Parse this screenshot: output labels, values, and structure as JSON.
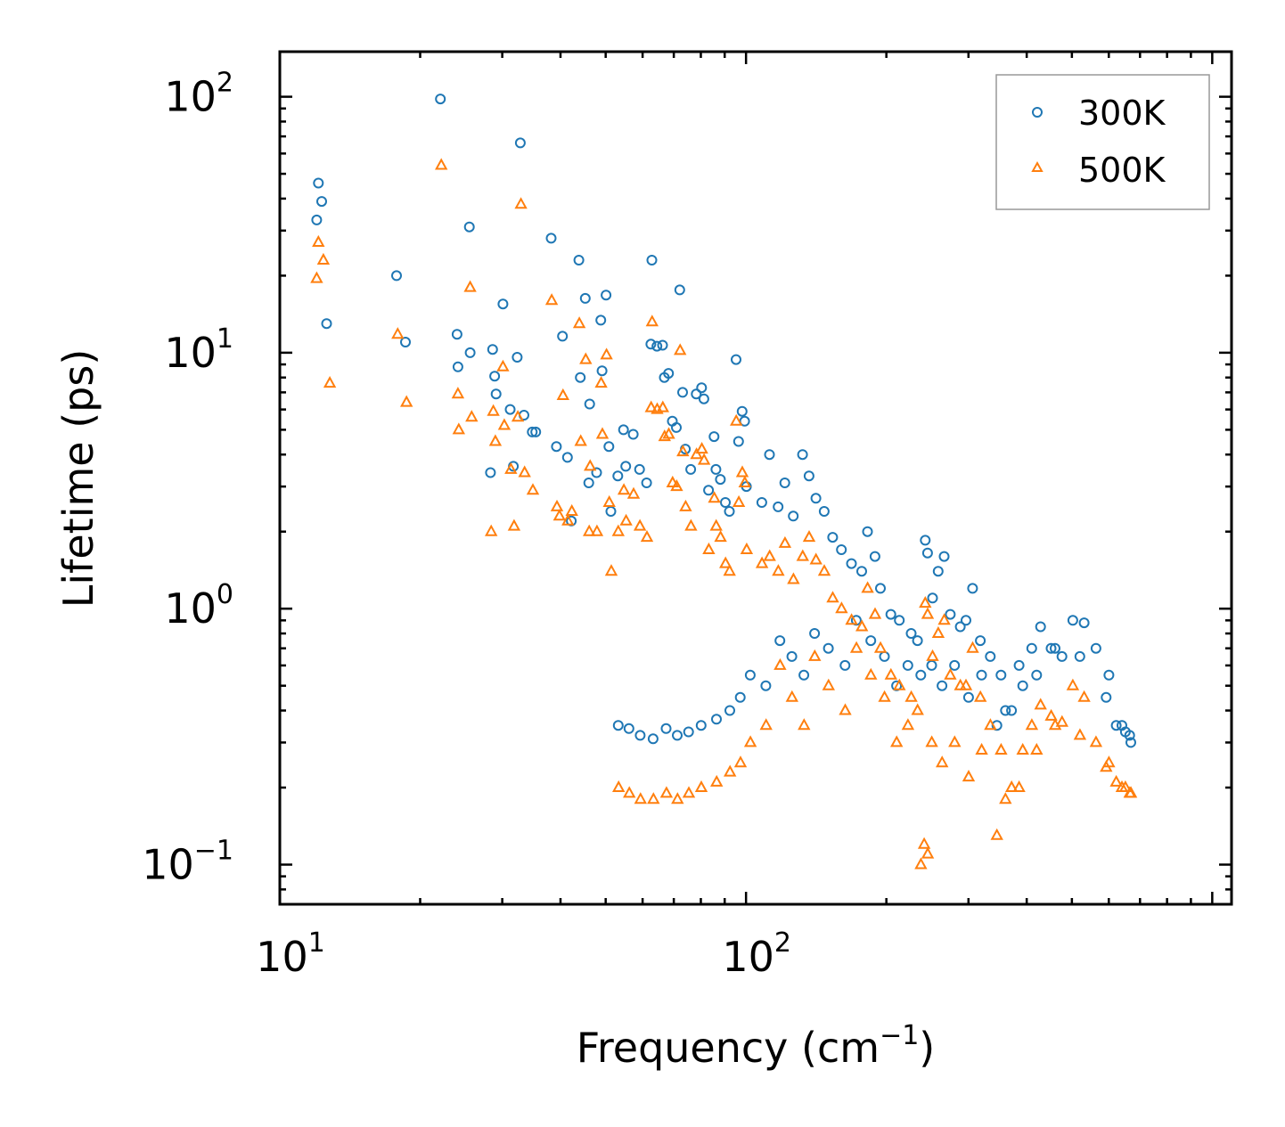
{
  "chart_data": {
    "type": "scatter",
    "xscale": "log",
    "yscale": "log",
    "xlim": [
      10,
      1100
    ],
    "ylim": [
      0.07,
      150
    ],
    "xlabel_text": "Frequency (cm",
    "xlabel_sup": "−1",
    "xlabel_close": ")",
    "ylabel": "Lifetime (ps)",
    "x_ticks": [
      {
        "value": 10,
        "base": "10",
        "exp": "1"
      },
      {
        "value": 100,
        "base": "10",
        "exp": "2"
      }
    ],
    "y_ticks": [
      {
        "value": 0.1,
        "base": "10",
        "exp": "−1"
      },
      {
        "value": 1,
        "base": "10",
        "exp": "0"
      },
      {
        "value": 10,
        "base": "10",
        "exp": "1"
      },
      {
        "value": 100,
        "base": "10",
        "exp": "2"
      }
    ],
    "legend_position": "top-right",
    "series": [
      {
        "name": "300K",
        "color": "#1f77b4",
        "marker": "circle",
        "points": [
          [
            12.1,
            46
          ],
          [
            12.3,
            39
          ],
          [
            12.0,
            33
          ],
          [
            12.6,
            13
          ],
          [
            17.8,
            20
          ],
          [
            18.6,
            11
          ],
          [
            22.1,
            98
          ],
          [
            24.0,
            11.8
          ],
          [
            24.1,
            8.8
          ],
          [
            25.5,
            31
          ],
          [
            25.6,
            10
          ],
          [
            28.3,
            3.4
          ],
          [
            28.6,
            10.3
          ],
          [
            28.9,
            8.1
          ],
          [
            29.1,
            6.9
          ],
          [
            30.1,
            15.5
          ],
          [
            31.2,
            6
          ],
          [
            31.7,
            3.6
          ],
          [
            32.3,
            9.6
          ],
          [
            32.8,
            66
          ],
          [
            33.4,
            5.7
          ],
          [
            34.8,
            4.9
          ],
          [
            35.4,
            4.9
          ],
          [
            38.2,
            28
          ],
          [
            39.2,
            4.3
          ],
          [
            40.4,
            11.6
          ],
          [
            41.4,
            3.9
          ],
          [
            42.2,
            2.2
          ],
          [
            43.8,
            23
          ],
          [
            44.1,
            8
          ],
          [
            45.2,
            16.3
          ],
          [
            46.0,
            3.1
          ],
          [
            46.2,
            6.3
          ],
          [
            47.8,
            3.4
          ],
          [
            48.8,
            13.4
          ],
          [
            49.1,
            8.5
          ],
          [
            50.1,
            16.8
          ],
          [
            50.8,
            4.3
          ],
          [
            51.3,
            2.4
          ],
          [
            53.1,
            3.3
          ],
          [
            54.6,
            5
          ],
          [
            55.2,
            3.6
          ],
          [
            57.3,
            4.8
          ],
          [
            59.1,
            3.5
          ],
          [
            61.2,
            3.1
          ],
          [
            62.5,
            10.8
          ],
          [
            62.8,
            23
          ],
          [
            64.4,
            10.6
          ],
          [
            66.2,
            10.7
          ],
          [
            66.8,
            8
          ],
          [
            68.2,
            8.3
          ],
          [
            69.5,
            5.4
          ],
          [
            70.9,
            5.1
          ],
          [
            72.1,
            17.6
          ],
          [
            73.1,
            7
          ],
          [
            74.1,
            4.2
          ],
          [
            76.1,
            3.5
          ],
          [
            78.2,
            6.9
          ],
          [
            80.3,
            7.3
          ],
          [
            81.2,
            6.6
          ],
          [
            83.1,
            2.9
          ],
          [
            85.4,
            4.7
          ],
          [
            86.2,
            3.5
          ],
          [
            88.1,
            3.2
          ],
          [
            90.3,
            2.6
          ],
          [
            92.1,
            2.4
          ],
          [
            95.2,
            9.4
          ],
          [
            96.4,
            4.5
          ],
          [
            98.1,
            5.9
          ],
          [
            99.3,
            5.4
          ],
          [
            100.2,
            3
          ],
          [
            108.1,
            2.6
          ],
          [
            112.3,
            4
          ],
          [
            117.2,
            2.5
          ],
          [
            121.1,
            3.1
          ],
          [
            126.3,
            2.3
          ],
          [
            132.2,
            4
          ],
          [
            136.5,
            3.3
          ],
          [
            141.2,
            2.7
          ],
          [
            147.1,
            2.4
          ],
          [
            153.4,
            1.9
          ],
          [
            160.2,
            1.7
          ],
          [
            168.3,
            1.5
          ],
          [
            177.1,
            1.4
          ],
          [
            182.2,
            2
          ],
          [
            189.1,
            1.6
          ],
          [
            194.2,
            1.2
          ],
          [
            204.5,
            0.95
          ],
          [
            213.2,
            0.9
          ],
          [
            226.1,
            0.8
          ],
          [
            233.2,
            0.75
          ],
          [
            242.3,
            1.85
          ],
          [
            245.1,
            1.65
          ],
          [
            251.2,
            1.1
          ],
          [
            258.3,
            1.4
          ],
          [
            266.1,
            1.6
          ],
          [
            274.2,
            0.95
          ],
          [
            288.1,
            0.85
          ],
          [
            296.3,
            0.9
          ],
          [
            306.2,
            1.2
          ],
          [
            318.1,
            0.75
          ],
          [
            334.2,
            0.65
          ],
          [
            352.3,
            0.55
          ],
          [
            371.1,
            0.4
          ],
          [
            392.2,
            0.5
          ],
          [
            410.1,
            0.7
          ],
          [
            428.3,
            0.85
          ],
          [
            451.2,
            0.7
          ],
          [
            476.1,
            0.65
          ],
          [
            502.3,
            0.9
          ],
          [
            531.1,
            0.88
          ],
          [
            563.2,
            0.7
          ],
          [
            592.1,
            0.45
          ],
          [
            622.3,
            0.35
          ],
          [
            651.2,
            0.33
          ],
          [
            669.1,
            0.3
          ],
          [
            53.2,
            0.35
          ],
          [
            56.1,
            0.34
          ],
          [
            59.3,
            0.32
          ],
          [
            63.2,
            0.31
          ],
          [
            67.4,
            0.34
          ],
          [
            71.2,
            0.32
          ],
          [
            75.3,
            0.33
          ],
          [
            80.1,
            0.35
          ],
          [
            86.4,
            0.37
          ],
          [
            92.3,
            0.4
          ],
          [
            97.2,
            0.45
          ],
          [
            102.1,
            0.55
          ],
          [
            110.3,
            0.5
          ],
          [
            118.2,
            0.75
          ],
          [
            125.4,
            0.65
          ],
          [
            133.1,
            0.55
          ],
          [
            140.3,
            0.8
          ],
          [
            150.2,
            0.7
          ],
          [
            163.1,
            0.6
          ],
          [
            172.4,
            0.9
          ],
          [
            185.2,
            0.75
          ],
          [
            198.1,
            0.65
          ],
          [
            210.3,
            0.5
          ],
          [
            222.4,
            0.6
          ],
          [
            237.1,
            0.55
          ],
          [
            250.2,
            0.6
          ],
          [
            263.3,
            0.5
          ],
          [
            280.1,
            0.6
          ],
          [
            300.2,
            0.45
          ],
          [
            320.1,
            0.55
          ],
          [
            345.2,
            0.35
          ],
          [
            360.1,
            0.4
          ],
          [
            385.2,
            0.6
          ],
          [
            420.1,
            0.55
          ],
          [
            460.2,
            0.7
          ],
          [
            520.1,
            0.65
          ],
          [
            600.2,
            0.55
          ],
          [
            640.1,
            0.35
          ],
          [
            665.2,
            0.32
          ]
        ]
      },
      {
        "name": "500K",
        "color": "#ff7f0e",
        "marker": "triangle",
        "points": [
          [
            12.1,
            27
          ],
          [
            12.4,
            23
          ],
          [
            12.0,
            19.5
          ],
          [
            12.8,
            7.6
          ],
          [
            17.9,
            11.8
          ],
          [
            18.7,
            6.4
          ],
          [
            22.2,
            54
          ],
          [
            24.1,
            6.9
          ],
          [
            24.2,
            5
          ],
          [
            25.6,
            18
          ],
          [
            25.8,
            5.6
          ],
          [
            28.4,
            2
          ],
          [
            28.7,
            5.9
          ],
          [
            29.0,
            4.5
          ],
          [
            30.1,
            8.8
          ],
          [
            30.3,
            5.2
          ],
          [
            31.3,
            3.5
          ],
          [
            31.8,
            2.1
          ],
          [
            32.4,
            5.6
          ],
          [
            32.9,
            38
          ],
          [
            33.5,
            3.4
          ],
          [
            34.9,
            2.9
          ],
          [
            38.3,
            16
          ],
          [
            39.3,
            2.5
          ],
          [
            39.8,
            2.3
          ],
          [
            40.5,
            6.8
          ],
          [
            41.5,
            2.2
          ],
          [
            42.3,
            2.4
          ],
          [
            43.9,
            13
          ],
          [
            44.2,
            4.5
          ],
          [
            45.3,
            9.4
          ],
          [
            46.1,
            2
          ],
          [
            46.3,
            3.6
          ],
          [
            47.9,
            2
          ],
          [
            48.9,
            7.6
          ],
          [
            49.2,
            4.8
          ],
          [
            50.2,
            9.8
          ],
          [
            50.9,
            2.6
          ],
          [
            51.4,
            1.4
          ],
          [
            53.2,
            2
          ],
          [
            54.7,
            2.9
          ],
          [
            55.3,
            2.2
          ],
          [
            57.4,
            2.8
          ],
          [
            59.2,
            2.1
          ],
          [
            61.3,
            1.9
          ],
          [
            62.6,
            6.1
          ],
          [
            62.9,
            13.2
          ],
          [
            64.5,
            6
          ],
          [
            66.3,
            6.1
          ],
          [
            66.9,
            4.7
          ],
          [
            68.3,
            4.8
          ],
          [
            69.6,
            3.1
          ],
          [
            71.0,
            3
          ],
          [
            72.2,
            10.2
          ],
          [
            73.2,
            4.1
          ],
          [
            74.2,
            2.5
          ],
          [
            76.2,
            2.1
          ],
          [
            78.3,
            4
          ],
          [
            80.4,
            4.2
          ],
          [
            81.3,
            3.8
          ],
          [
            83.2,
            1.7
          ],
          [
            85.5,
            2.7
          ],
          [
            86.3,
            2.1
          ],
          [
            88.2,
            1.9
          ],
          [
            90.4,
            1.5
          ],
          [
            92.2,
            1.4
          ],
          [
            95.3,
            5.4
          ],
          [
            96.5,
            2.6
          ],
          [
            98.2,
            3.4
          ],
          [
            99.4,
            3.1
          ],
          [
            100.3,
            1.7
          ],
          [
            108.2,
            1.5
          ],
          [
            112.4,
            1.6
          ],
          [
            117.3,
            1.4
          ],
          [
            121.2,
            1.8
          ],
          [
            126.4,
            1.3
          ],
          [
            132.3,
            1.6
          ],
          [
            136.6,
            1.9
          ],
          [
            141.3,
            1.55
          ],
          [
            147.2,
            1.4
          ],
          [
            153.5,
            1.1
          ],
          [
            160.3,
            1
          ],
          [
            168.4,
            0.9
          ],
          [
            177.2,
            0.85
          ],
          [
            182.3,
            1.2
          ],
          [
            189.2,
            0.95
          ],
          [
            194.3,
            0.7
          ],
          [
            204.6,
            0.55
          ],
          [
            213.3,
            0.5
          ],
          [
            226.2,
            0.45
          ],
          [
            233.3,
            0.4
          ],
          [
            242.4,
            1.05
          ],
          [
            245.2,
            0.95
          ],
          [
            251.3,
            0.65
          ],
          [
            258.4,
            0.8
          ],
          [
            266.2,
            0.9
          ],
          [
            274.3,
            0.55
          ],
          [
            288.2,
            0.5
          ],
          [
            296.4,
            0.5
          ],
          [
            306.3,
            0.7
          ],
          [
            318.2,
            0.45
          ],
          [
            334.3,
            0.35
          ],
          [
            352.4,
            0.28
          ],
          [
            371.2,
            0.2
          ],
          [
            392.3,
            0.28
          ],
          [
            410.2,
            0.35
          ],
          [
            428.4,
            0.42
          ],
          [
            451.3,
            0.38
          ],
          [
            476.2,
            0.36
          ],
          [
            502.4,
            0.5
          ],
          [
            531.2,
            0.45
          ],
          [
            563.3,
            0.3
          ],
          [
            592.2,
            0.24
          ],
          [
            622.4,
            0.21
          ],
          [
            651.3,
            0.2
          ],
          [
            669.2,
            0.19
          ],
          [
            53.3,
            0.2
          ],
          [
            56.2,
            0.19
          ],
          [
            59.4,
            0.18
          ],
          [
            63.3,
            0.18
          ],
          [
            67.5,
            0.19
          ],
          [
            71.3,
            0.18
          ],
          [
            75.4,
            0.19
          ],
          [
            80.2,
            0.2
          ],
          [
            86.5,
            0.21
          ],
          [
            92.4,
            0.23
          ],
          [
            97.3,
            0.25
          ],
          [
            102.2,
            0.3
          ],
          [
            110.4,
            0.35
          ],
          [
            118.3,
            0.6
          ],
          [
            125.5,
            0.45
          ],
          [
            133.2,
            0.35
          ],
          [
            140.4,
            0.65
          ],
          [
            150.3,
            0.5
          ],
          [
            163.2,
            0.4
          ],
          [
            172.5,
            0.7
          ],
          [
            185.3,
            0.55
          ],
          [
            198.2,
            0.45
          ],
          [
            210.4,
            0.3
          ],
          [
            222.5,
            0.35
          ],
          [
            237.2,
            0.1
          ],
          [
            241.1,
            0.12
          ],
          [
            245.3,
            0.11
          ],
          [
            250.3,
            0.3
          ],
          [
            263.4,
            0.25
          ],
          [
            280.2,
            0.3
          ],
          [
            300.3,
            0.22
          ],
          [
            320.2,
            0.28
          ],
          [
            345.3,
            0.13
          ],
          [
            360.2,
            0.18
          ],
          [
            385.3,
            0.2
          ],
          [
            420.2,
            0.28
          ],
          [
            460.3,
            0.35
          ],
          [
            520.2,
            0.32
          ],
          [
            600.3,
            0.25
          ],
          [
            640.2,
            0.2
          ],
          [
            665.3,
            0.19
          ]
        ]
      }
    ]
  }
}
